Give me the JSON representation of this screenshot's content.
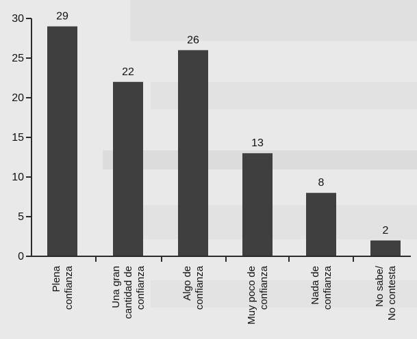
{
  "chart_data": {
    "type": "bar",
    "title": "",
    "xlabel": "",
    "ylabel": "",
    "ylim": [
      0,
      30
    ],
    "yticks": [
      0,
      5,
      10,
      15,
      20,
      25,
      30
    ],
    "grid": false,
    "categories": [
      [
        "Plena",
        "confianza"
      ],
      [
        "Una gran",
        "cantidad de",
        "confianza"
      ],
      [
        "Algo de",
        "confianza"
      ],
      [
        "Muy poco de",
        "confianza"
      ],
      [
        "Nada de",
        "confianza"
      ],
      [
        "No sabe/",
        "No contesta"
      ]
    ],
    "values": [
      29,
      22,
      26,
      13,
      8,
      2
    ],
    "data_labels": [
      "29",
      "22",
      "26",
      "13",
      "8",
      "2"
    ],
    "colors": {
      "bar": "#3f3f3f",
      "axis": "#2a2a2a",
      "text": "#111111",
      "background": "#e9e9e9"
    }
  }
}
